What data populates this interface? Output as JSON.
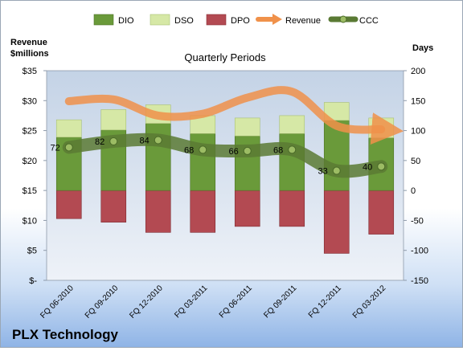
{
  "chart_data": {
    "type": "bar",
    "title": "Quarterly Periods",
    "company": "PLX Technology",
    "left_axis_label": [
      "Revenue",
      "$millions"
    ],
    "right_axis_label": "Days",
    "left_ylim": [
      0,
      35
    ],
    "left_ticks": [
      "$-",
      "$5",
      "$10",
      "$15",
      "$20",
      "$25",
      "$30",
      "$35"
    ],
    "right_ylim": [
      -150,
      200
    ],
    "right_ticks": [
      "-150",
      "-100",
      "-50",
      "0",
      "50",
      "100",
      "150",
      "200"
    ],
    "categories": [
      "FQ 06-2010",
      "FQ 09-2010",
      "FQ 12-2010",
      "FQ 03-2011",
      "FQ 06-2011",
      "FQ 09-2011",
      "FQ 12-2011",
      "FQ 03-2012"
    ],
    "legend_position": "top",
    "grid": false,
    "series": [
      {
        "name": "DIO",
        "axis": "right",
        "type": "stacked-bar",
        "color": "#6a9a3a",
        "values": [
          89,
          101,
          112,
          95,
          91,
          95,
          117,
          88
        ]
      },
      {
        "name": "DSO",
        "axis": "right",
        "type": "stacked-bar",
        "color": "#d6e8a6",
        "values": [
          29,
          34,
          31,
          30,
          30,
          30,
          30,
          33
        ]
      },
      {
        "name": "DPO",
        "axis": "right",
        "type": "negative-bar",
        "color": "#b34a52",
        "values": [
          -47,
          -53,
          -70,
          -70,
          -60,
          -60,
          -105,
          -73
        ]
      },
      {
        "name": "Revenue",
        "axis": "left",
        "type": "line",
        "color": "#f0914a",
        "values": [
          29.9,
          30.2,
          27.5,
          27.8,
          30.5,
          31.5,
          25.8,
          25.2
        ]
      },
      {
        "name": "CCC",
        "axis": "right",
        "type": "line",
        "color": "#5a7a34",
        "values": [
          72,
          82,
          84,
          68,
          66,
          68,
          33,
          40
        ]
      }
    ],
    "ccc_labels": [
      "72",
      "82",
      "84",
      "68",
      "66",
      "68",
      "33",
      "40"
    ]
  }
}
